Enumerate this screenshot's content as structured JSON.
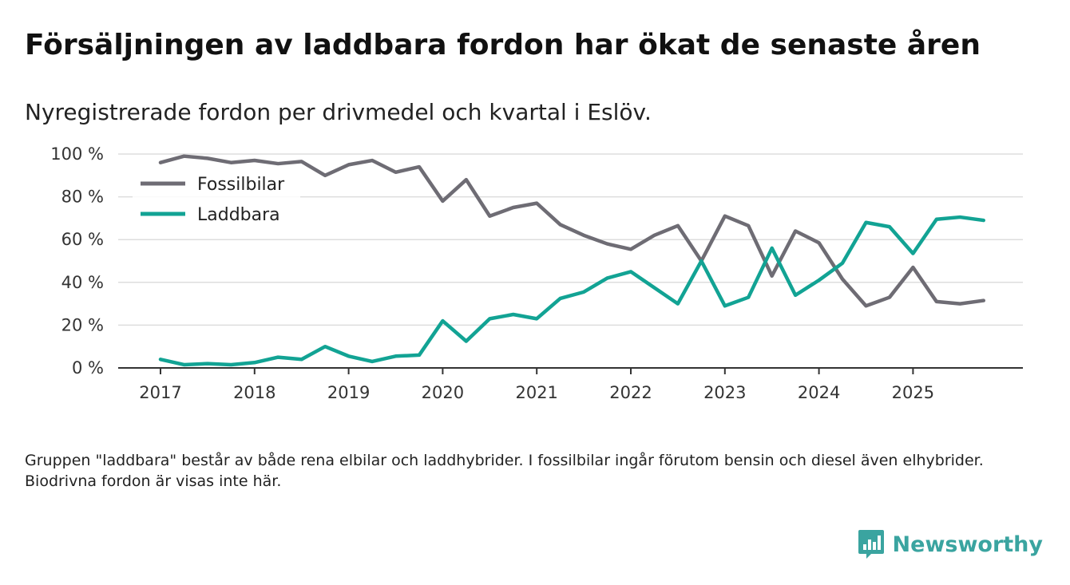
{
  "title": "Försäljningen av laddbara fordon har ökat de senaste åren",
  "subtitle": "Nyregistrerade fordon per drivmedel och kvartal i Eslöv.",
  "note": "Gruppen \"laddbara\" består av både rena elbilar och laddhybrider. I fossilbilar ingår förutom bensin och diesel även elhybrider. Biodrivna fordon är visas inte här.",
  "brand": {
    "name": "Newsworthy"
  },
  "colors": {
    "fossil": "#6e6c74",
    "charging": "#12a394",
    "grid": "#dddddd",
    "axis": "#333333",
    "brand": "#3aa4a0"
  },
  "chart_data": {
    "type": "line",
    "title": "Försäljningen av laddbara fordon har ökat de senaste åren",
    "subtitle": "Nyregistrerade fordon per drivmedel och kvartal i Eslöv.",
    "xlabel": "",
    "ylabel": "",
    "ylim": [
      0,
      100
    ],
    "y_ticks": [
      0,
      20,
      40,
      60,
      80,
      100
    ],
    "y_tick_labels": [
      "0 %",
      "20 %",
      "40 %",
      "60 %",
      "80 %",
      "100 %"
    ],
    "x_tick_labels": [
      "2017",
      "2018",
      "2019",
      "2020",
      "2021",
      "2022",
      "2023",
      "2024",
      "2025"
    ],
    "x_start_year": 2017,
    "legend_position": "top-left",
    "grid": true,
    "x": [
      "2017 Q1",
      "2017 Q2",
      "2017 Q3",
      "2017 Q4",
      "2018 Q1",
      "2018 Q2",
      "2018 Q3",
      "2018 Q4",
      "2019 Q1",
      "2019 Q2",
      "2019 Q3",
      "2019 Q4",
      "2020 Q1",
      "2020 Q2",
      "2020 Q3",
      "2020 Q4",
      "2021 Q1",
      "2021 Q2",
      "2021 Q3",
      "2021 Q4",
      "2022 Q1",
      "2022 Q2",
      "2022 Q3",
      "2022 Q4",
      "2023 Q1",
      "2023 Q2",
      "2023 Q3",
      "2023 Q4",
      "2024 Q1",
      "2024 Q2",
      "2024 Q3",
      "2024 Q4",
      "2025 Q1",
      "2025 Q2",
      "2025 Q3",
      "2025 Q4"
    ],
    "series": [
      {
        "name": "Fossilbilar",
        "color_key": "fossil",
        "values": [
          96,
          99,
          98,
          96,
          97,
          95.5,
          96.5,
          90,
          95,
          97,
          91.5,
          94,
          78,
          88,
          71,
          75,
          77,
          67,
          62,
          58,
          55.5,
          62,
          66.5,
          50,
          71,
          66.5,
          43,
          64,
          58.5,
          41.5,
          29,
          33,
          47,
          31,
          30,
          31.5
        ]
      },
      {
        "name": "Laddbara",
        "color_key": "charging",
        "values": [
          4,
          1.5,
          2,
          1.5,
          2.5,
          5,
          4,
          10,
          5.5,
          3,
          5.5,
          6,
          22,
          12.5,
          23,
          25,
          23,
          32.5,
          35.5,
          42,
          45,
          37.5,
          30,
          50,
          29,
          33,
          56,
          34,
          41,
          49,
          68,
          66,
          53.5,
          69.5,
          70.5,
          69
        ]
      }
    ]
  }
}
